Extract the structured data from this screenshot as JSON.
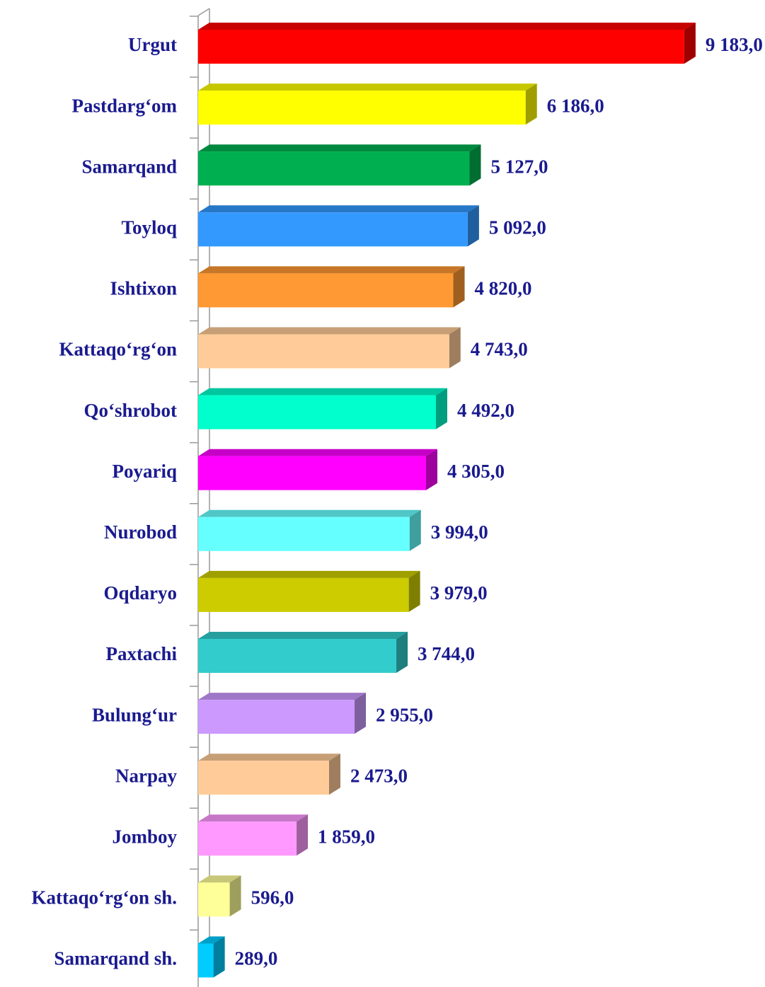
{
  "chart_data": {
    "type": "bar",
    "orientation": "horizontal",
    "categories": [
      "Urgut",
      "Pastdarg‘om",
      "Samarqand",
      "Toyloq",
      "Ishtixon",
      "Kattaqo‘rg‘on",
      "Qo‘shrobot",
      "Poyariq",
      "Nurobod",
      "Oqdaryo",
      "Paxtachi",
      "Bulung‘ur",
      "Narpay",
      "Jomboy",
      "Kattaqo‘rg‘on sh.",
      "Samarqand sh."
    ],
    "values": [
      9183,
      6186,
      5127,
      5092,
      4820,
      4743,
      4492,
      4305,
      3994,
      3979,
      3744,
      2955,
      2473,
      1859,
      596,
      289
    ],
    "value_labels": [
      "9 183,0",
      "6 186,0",
      "5 127,0",
      "5 092,0",
      "4 820,0",
      "4 743,0",
      "4 492,0",
      "4 305,0",
      "3 994,0",
      "3 979,0",
      "3 744,0",
      "2 955,0",
      "2 473,0",
      "1 859,0",
      "596,0",
      "289,0"
    ],
    "colors": [
      "#ff0000",
      "#ffff00",
      "#00b050",
      "#3399ff",
      "#ff9933",
      "#ffcc99",
      "#00ffcc",
      "#ff00ff",
      "#66ffff",
      "#cccc00",
      "#33cccc",
      "#cc99ff",
      "#ffcc99",
      "#ff99ff",
      "#ffff99",
      "#00ccff"
    ],
    "xlim": [
      0,
      10000
    ]
  }
}
